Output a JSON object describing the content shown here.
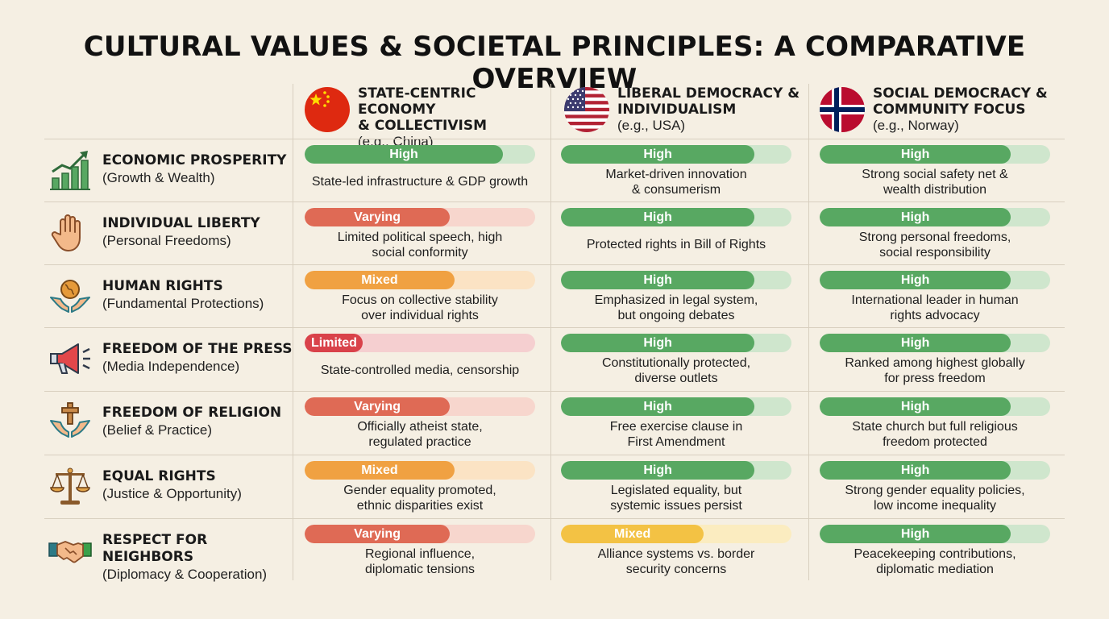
{
  "title": "CULTURAL VALUES & SOCIETAL PRINCIPLES: A COMPARATIVE OVERVIEW",
  "colors": {
    "high_fill": "#58a862",
    "high_track": "#cfe6cd",
    "varying_fill": "#df6a55",
    "varying_track": "#f7d6cd",
    "mixed_fill": "#f0a142",
    "mixed_track": "#fbe3c4",
    "limited_fill": "#d9424a",
    "limited_track": "#f5cfd0",
    "mixed_yellow_fill": "#f3c244",
    "mixed_yellow_track": "#fbecc0"
  },
  "columns": [
    {
      "flag": "china-flag-icon",
      "title_l1": "STATE-CENTRIC ECONOMY",
      "title_l2": "& COLLECTIVISM",
      "subtitle": "(e.g., China)"
    },
    {
      "flag": "usa-flag-icon",
      "title_l1": "LIBERAL DEMOCRACY &",
      "title_l2": "INDIVIDUALISM",
      "subtitle": "(e.g., USA)"
    },
    {
      "flag": "norway-flag-icon",
      "title_l1": "SOCIAL DEMOCRACY &",
      "title_l2": "COMMUNITY FOCUS",
      "subtitle": "(e.g., Norway)"
    }
  ],
  "rows": [
    {
      "icon": "growth-chart-icon",
      "title": "ECONOMIC PROSPERITY",
      "subtitle": "(Growth & Wealth)",
      "cells": [
        {
          "rating": "High",
          "level": 0.86,
          "style": "high",
          "desc_l1": "State-led infrastructure & GDP growth",
          "desc_l2": ""
        },
        {
          "rating": "High",
          "level": 0.84,
          "style": "high",
          "desc_l1": "Market-driven innovation",
          "desc_l2": "& consumerism"
        },
        {
          "rating": "High",
          "level": 0.83,
          "style": "high",
          "desc_l1": "Strong social safety net &",
          "desc_l2": "wealth distribution"
        }
      ]
    },
    {
      "icon": "raised-hand-icon",
      "title": "INDIVIDUAL LIBERTY",
      "subtitle": "(Personal Freedoms)",
      "cells": [
        {
          "rating": "Varying",
          "level": 0.63,
          "style": "varying",
          "desc_l1": "Limited political speech, high",
          "desc_l2": "social conformity"
        },
        {
          "rating": "High",
          "level": 0.84,
          "style": "high",
          "desc_l1": "Protected rights in Bill of Rights",
          "desc_l2": ""
        },
        {
          "rating": "High",
          "level": 0.83,
          "style": "high",
          "desc_l1": "Strong personal freedoms,",
          "desc_l2": "social responsibility"
        }
      ]
    },
    {
      "icon": "hands-globe-icon",
      "title": "HUMAN RIGHTS",
      "subtitle": "(Fundamental Protections)",
      "cells": [
        {
          "rating": "Mixed",
          "level": 0.65,
          "style": "mixed",
          "desc_l1": "Focus on collective stability",
          "desc_l2": "over individual rights"
        },
        {
          "rating": "High",
          "level": 0.84,
          "style": "high",
          "desc_l1": "Emphasized in legal system,",
          "desc_l2": "but ongoing debates"
        },
        {
          "rating": "High",
          "level": 0.83,
          "style": "high",
          "desc_l1": "International leader in human",
          "desc_l2": "rights advocacy"
        }
      ]
    },
    {
      "icon": "megaphone-icon",
      "title": "FREEDOM OF THE PRESS",
      "subtitle": "(Media Independence)",
      "cells": [
        {
          "rating": "Limited",
          "level": 0.25,
          "style": "limited",
          "desc_l1": "State-controlled media, censorship",
          "desc_l2": ""
        },
        {
          "rating": "High",
          "level": 0.84,
          "style": "high",
          "desc_l1": "Constitutionally protected,",
          "desc_l2": "diverse outlets"
        },
        {
          "rating": "High",
          "level": 0.83,
          "style": "high",
          "desc_l1": "Ranked among highest globally",
          "desc_l2": "for press freedom"
        }
      ]
    },
    {
      "icon": "hands-cross-icon",
      "title": "FREEDOM OF RELIGION",
      "subtitle": "(Belief & Practice)",
      "cells": [
        {
          "rating": "Varying",
          "level": 0.63,
          "style": "varying",
          "desc_l1": "Officially atheist state,",
          "desc_l2": "regulated practice"
        },
        {
          "rating": "High",
          "level": 0.84,
          "style": "high",
          "desc_l1": "Free exercise clause in",
          "desc_l2": "First Amendment"
        },
        {
          "rating": "High",
          "level": 0.83,
          "style": "high",
          "desc_l1": "State church but full religious",
          "desc_l2": "freedom protected"
        }
      ]
    },
    {
      "icon": "scales-icon",
      "title": "EQUAL RIGHTS",
      "subtitle": "(Justice & Opportunity)",
      "cells": [
        {
          "rating": "Mixed",
          "level": 0.65,
          "style": "mixed",
          "desc_l1": "Gender equality promoted,",
          "desc_l2": "ethnic disparities exist"
        },
        {
          "rating": "High",
          "level": 0.84,
          "style": "high",
          "desc_l1": "Legislated equality, but",
          "desc_l2": "systemic issues persist"
        },
        {
          "rating": "High",
          "level": 0.83,
          "style": "high",
          "desc_l1": "Strong gender equality policies,",
          "desc_l2": "low income inequality"
        }
      ]
    },
    {
      "icon": "handshake-icon",
      "title": "RESPECT FOR NEIGHBORS",
      "subtitle": "(Diplomacy & Cooperation)",
      "cells": [
        {
          "rating": "Varying",
          "level": 0.63,
          "style": "varying",
          "desc_l1": "Regional influence,",
          "desc_l2": "diplomatic tensions"
        },
        {
          "rating": "Mixed",
          "level": 0.62,
          "style": "mixed_yellow",
          "desc_l1": "Alliance systems vs. border",
          "desc_l2": "security concerns"
        },
        {
          "rating": "High",
          "level": 0.83,
          "style": "high",
          "desc_l1": "Peacekeeping contributions,",
          "desc_l2": "diplomatic mediation"
        }
      ]
    }
  ]
}
